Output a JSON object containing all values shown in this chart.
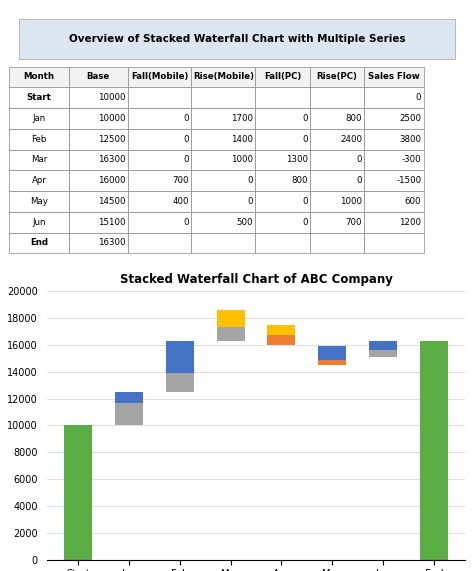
{
  "title": "Stacked Waterfall Chart of ABC Company",
  "categories": [
    "Start",
    "Jan",
    "Feb",
    "Mar",
    "Apr",
    "May",
    "Jun",
    "End"
  ],
  "base": [
    10000,
    10000,
    12500,
    16300,
    16000,
    14500,
    15100,
    16300
  ],
  "fall_mobile": [
    0,
    0,
    0,
    0,
    700,
    400,
    0,
    0
  ],
  "rise_mobile": [
    0,
    1700,
    1400,
    1000,
    0,
    0,
    500,
    0
  ],
  "fall_pc": [
    0,
    0,
    0,
    1300,
    800,
    0,
    0,
    0
  ],
  "rise_pc": [
    0,
    800,
    2400,
    0,
    0,
    1000,
    700,
    0
  ],
  "colors": {
    "base_start_end": "#5aac44",
    "fall_mobile": "#ed7d31",
    "rise_mobile": "#a5a5a5",
    "fall_pc": "#ffc000",
    "rise_pc": "#4472c4",
    "invisible": "none"
  },
  "legend_labels": [
    "Base",
    "Fall(Mobile)",
    "Rise(Mobile)",
    "Fall(PC)",
    "Rise(PC)"
  ],
  "ylim": [
    0,
    20000
  ],
  "yticks": [
    0,
    2000,
    4000,
    6000,
    8000,
    10000,
    12000,
    14000,
    16000,
    18000,
    20000
  ],
  "header_text": "Overview of Stacked Waterfall Chart with Multiple Series",
  "table_data": {
    "headers": [
      "Month",
      "Base",
      "Fall(Mobile)",
      "Rise(Mobile)",
      "Fall(PC)",
      "Rise(PC)",
      "Sales Flow"
    ],
    "rows": [
      [
        "Start",
        "10000",
        "",
        "",
        "",
        "",
        "0"
      ],
      [
        "Jan",
        "10000",
        "0",
        "1700",
        "0",
        "800",
        "2500"
      ],
      [
        "Feb",
        "12500",
        "0",
        "1400",
        "0",
        "2400",
        "3800"
      ],
      [
        "Mar",
        "16300",
        "0",
        "1000",
        "1300",
        "0",
        "-300"
      ],
      [
        "Apr",
        "16000",
        "700",
        "0",
        "800",
        "0",
        "-1500"
      ],
      [
        "May",
        "14500",
        "400",
        "0",
        "0",
        "1000",
        "600"
      ],
      [
        "Jun",
        "15100",
        "0",
        "500",
        "0",
        "700",
        "1200"
      ],
      [
        "End",
        "16300",
        "",
        "",
        "",
        "",
        ""
      ]
    ]
  }
}
